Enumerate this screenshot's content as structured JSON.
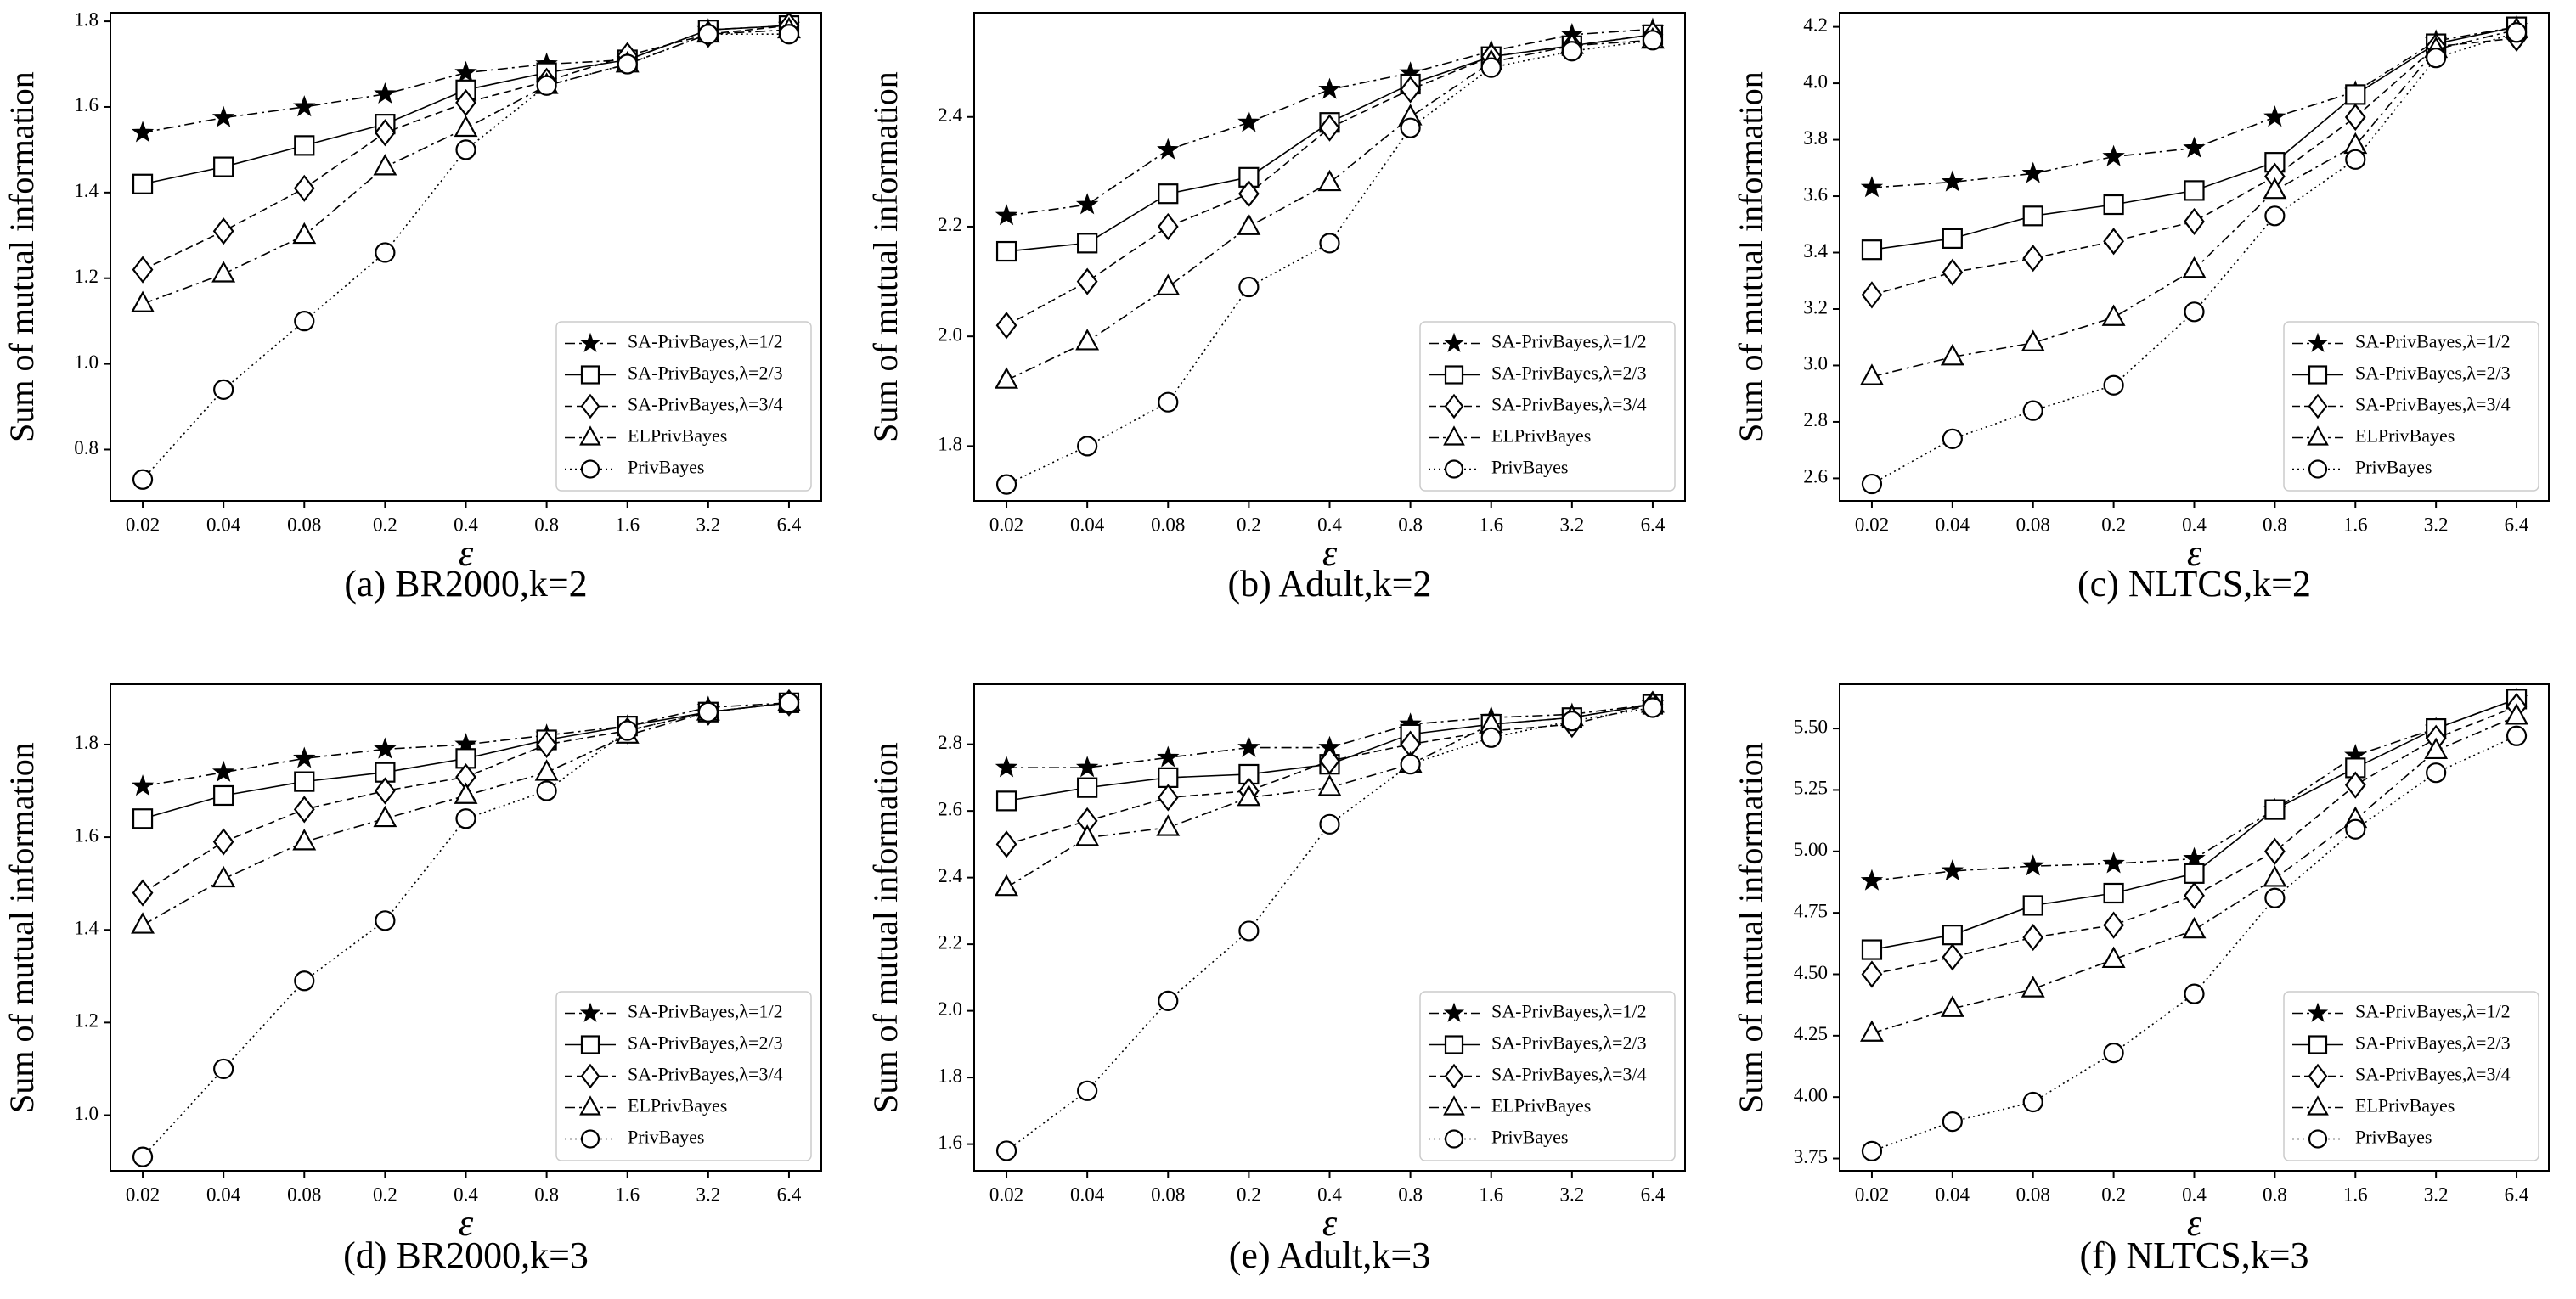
{
  "chart_data": [
    {
      "type": "line",
      "title": "(a) BR2000,k=2",
      "xlabel": "ε",
      "ylabel": "Sum of mutual information",
      "categories": [
        "0.02",
        "0.04",
        "0.08",
        "0.2",
        "0.4",
        "0.8",
        "1.6",
        "3.2",
        "6.4"
      ],
      "ylim": [
        0.68,
        1.82
      ],
      "yticks": [
        0.8,
        {
          "value": 1.0,
          "label": "1.0"
        },
        1.2,
        1.4,
        1.6,
        1.8
      ],
      "legend": "lower right",
      "series": [
        {
          "name": "SA-PrivBayes,λ=1/2",
          "color": "#000000",
          "marker": "star",
          "linestyle": "dashdot",
          "values": [
            1.54,
            1.575,
            1.6,
            1.63,
            1.68,
            1.7,
            1.71,
            1.78,
            1.79
          ]
        },
        {
          "name": "SA-PrivBayes,λ=2/3",
          "color": "#000000",
          "marker": "square",
          "linestyle": "solid",
          "values": [
            1.42,
            1.46,
            1.51,
            1.56,
            1.64,
            1.68,
            1.71,
            1.78,
            1.79
          ]
        },
        {
          "name": "SA-PrivBayes,λ=3/4",
          "color": "#000000",
          "marker": "diamond",
          "linestyle": "dashed",
          "values": [
            1.22,
            1.31,
            1.41,
            1.54,
            1.61,
            1.66,
            1.72,
            1.77,
            1.79
          ]
        },
        {
          "name": "ELPrivBayes",
          "color": "#000000",
          "marker": "triangle",
          "linestyle": "dashdot",
          "values": [
            1.14,
            1.21,
            1.3,
            1.46,
            1.55,
            1.65,
            1.7,
            1.77,
            1.78
          ]
        },
        {
          "name": "PrivBayes",
          "color": "#000000",
          "marker": "circle",
          "linestyle": "dotted",
          "values": [
            0.73,
            0.94,
            1.1,
            1.26,
            1.5,
            1.65,
            1.7,
            1.77,
            1.77
          ]
        }
      ]
    },
    {
      "type": "line",
      "title": "(b) Adult,k=2",
      "xlabel": "ε",
      "ylabel": "Sum of mutual information",
      "categories": [
        "0.02",
        "0.04",
        "0.08",
        "0.2",
        "0.4",
        "0.8",
        "1.6",
        "3.2",
        "6.4"
      ],
      "ylim": [
        1.7,
        2.59
      ],
      "yticks": [
        1.8,
        {
          "value": 2.0,
          "label": "2.0"
        },
        2.2,
        2.4
      ],
      "legend": "lower right",
      "series": [
        {
          "name": "SA-PrivBayes,λ=1/2",
          "color": "#000000",
          "marker": "star",
          "linestyle": "dashdot",
          "values": [
            2.22,
            2.24,
            2.34,
            2.39,
            2.45,
            2.48,
            2.52,
            2.55,
            2.56
          ]
        },
        {
          "name": "SA-PrivBayes,λ=2/3",
          "color": "#000000",
          "marker": "square",
          "linestyle": "solid",
          "values": [
            2.155,
            2.17,
            2.26,
            2.29,
            2.39,
            2.46,
            2.51,
            2.53,
            2.55
          ]
        },
        {
          "name": "SA-PrivBayes,λ=3/4",
          "color": "#000000",
          "marker": "diamond",
          "linestyle": "dashed",
          "values": [
            2.02,
            2.1,
            2.2,
            2.26,
            2.38,
            2.45,
            2.51,
            2.53,
            2.55
          ]
        },
        {
          "name": "ELPrivBayes",
          "color": "#000000",
          "marker": "triangle",
          "linestyle": "dashdot",
          "values": [
            1.92,
            1.99,
            2.09,
            2.2,
            2.28,
            2.4,
            2.5,
            2.53,
            2.54
          ]
        },
        {
          "name": "PrivBayes",
          "color": "#000000",
          "marker": "circle",
          "linestyle": "dotted",
          "values": [
            1.73,
            1.8,
            1.88,
            2.09,
            2.17,
            2.38,
            2.49,
            2.52,
            2.54
          ]
        }
      ]
    },
    {
      "type": "line",
      "title": "(c) NLTCS,k=2",
      "xlabel": "ε",
      "ylabel": "Sum of mutual information",
      "categories": [
        "0.02",
        "0.04",
        "0.08",
        "0.2",
        "0.4",
        "0.8",
        "1.6",
        "3.2",
        "6.4"
      ],
      "ylim": [
        2.52,
        4.25
      ],
      "yticks": [
        2.6,
        2.8,
        {
          "value": 3.0,
          "label": "3.0"
        },
        3.2,
        3.4,
        3.6,
        3.8,
        {
          "value": 4.0,
          "label": "4.0"
        },
        4.2
      ],
      "legend": "lower right",
      "series": [
        {
          "name": "SA-PrivBayes,λ=1/2",
          "color": "#000000",
          "marker": "star",
          "linestyle": "dashdot",
          "values": [
            3.63,
            3.65,
            3.68,
            3.74,
            3.77,
            3.88,
            3.97,
            4.15,
            4.2
          ]
        },
        {
          "name": "SA-PrivBayes,λ=2/3",
          "color": "#000000",
          "marker": "square",
          "linestyle": "solid",
          "values": [
            3.41,
            3.45,
            3.53,
            3.57,
            3.62,
            3.72,
            3.96,
            4.14,
            4.2
          ]
        },
        {
          "name": "SA-PrivBayes,λ=3/4",
          "color": "#000000",
          "marker": "diamond",
          "linestyle": "dashed",
          "values": [
            3.25,
            3.33,
            3.38,
            3.44,
            3.51,
            3.67,
            3.88,
            4.13,
            4.16
          ]
        },
        {
          "name": "ELPrivBayes",
          "color": "#000000",
          "marker": "triangle",
          "linestyle": "dashdot",
          "values": [
            2.96,
            3.03,
            3.08,
            3.17,
            3.34,
            3.62,
            3.78,
            4.12,
            4.19
          ]
        },
        {
          "name": "PrivBayes",
          "color": "#000000",
          "marker": "circle",
          "linestyle": "dotted",
          "values": [
            2.58,
            2.74,
            2.84,
            2.93,
            3.19,
            3.53,
            3.73,
            4.09,
            4.18
          ]
        }
      ]
    },
    {
      "type": "line",
      "title": "(d) BR2000,k=3",
      "xlabel": "ε",
      "ylabel": "Sum of mutual information",
      "categories": [
        "0.02",
        "0.04",
        "0.08",
        "0.2",
        "0.4",
        "0.8",
        "1.6",
        "3.2",
        "6.4"
      ],
      "ylim": [
        0.88,
        1.93
      ],
      "yticks": [
        {
          "value": 1.0,
          "label": "1.0"
        },
        1.2,
        1.4,
        1.6,
        1.8
      ],
      "legend": "lower right",
      "series": [
        {
          "name": "SA-PrivBayes,λ=1/2",
          "color": "#000000",
          "marker": "star",
          "linestyle": "dashdot",
          "values": [
            1.71,
            1.74,
            1.77,
            1.79,
            1.8,
            1.82,
            1.84,
            1.88,
            1.89
          ]
        },
        {
          "name": "SA-PrivBayes,λ=2/3",
          "color": "#000000",
          "marker": "square",
          "linestyle": "solid",
          "values": [
            1.64,
            1.69,
            1.72,
            1.74,
            1.77,
            1.81,
            1.84,
            1.87,
            1.89
          ]
        },
        {
          "name": "SA-PrivBayes,λ=3/4",
          "color": "#000000",
          "marker": "diamond",
          "linestyle": "dashed",
          "values": [
            1.48,
            1.59,
            1.66,
            1.7,
            1.73,
            1.8,
            1.83,
            1.87,
            1.89
          ]
        },
        {
          "name": "ELPrivBayes",
          "color": "#000000",
          "marker": "triangle",
          "linestyle": "dashdot",
          "values": [
            1.41,
            1.51,
            1.59,
            1.64,
            1.69,
            1.74,
            1.82,
            1.87,
            1.89
          ]
        },
        {
          "name": "PrivBayes",
          "color": "#000000",
          "marker": "circle",
          "linestyle": "dotted",
          "values": [
            0.91,
            1.1,
            1.29,
            1.42,
            1.64,
            1.7,
            1.83,
            1.87,
            1.89
          ]
        }
      ]
    },
    {
      "type": "line",
      "title": "(e) Adult,k=3",
      "xlabel": "ε",
      "ylabel": "Sum of mutual information",
      "categories": [
        "0.02",
        "0.04",
        "0.08",
        "0.2",
        "0.4",
        "0.8",
        "1.6",
        "3.2",
        "6.4"
      ],
      "ylim": [
        1.52,
        2.98
      ],
      "yticks": [
        1.6,
        1.8,
        {
          "value": 2.0,
          "label": "2.0"
        },
        2.2,
        2.4,
        2.6,
        2.8
      ],
      "legend": "lower right",
      "series": [
        {
          "name": "SA-PrivBayes,λ=1/2",
          "color": "#000000",
          "marker": "star",
          "linestyle": "dashdot",
          "values": [
            2.73,
            2.73,
            2.76,
            2.79,
            2.79,
            2.86,
            2.88,
            2.89,
            2.92
          ]
        },
        {
          "name": "SA-PrivBayes,λ=2/3",
          "color": "#000000",
          "marker": "square",
          "linestyle": "solid",
          "values": [
            2.63,
            2.67,
            2.7,
            2.71,
            2.74,
            2.83,
            2.86,
            2.88,
            2.92
          ]
        },
        {
          "name": "SA-PrivBayes,λ=3/4",
          "color": "#000000",
          "marker": "diamond",
          "linestyle": "dashed",
          "values": [
            2.5,
            2.57,
            2.64,
            2.66,
            2.75,
            2.8,
            2.84,
            2.86,
            2.92
          ]
        },
        {
          "name": "ELPrivBayes",
          "color": "#000000",
          "marker": "triangle",
          "linestyle": "dashdot",
          "values": [
            2.37,
            2.52,
            2.55,
            2.64,
            2.67,
            2.74,
            2.86,
            2.88,
            2.92
          ]
        },
        {
          "name": "PrivBayes",
          "color": "#000000",
          "marker": "circle",
          "linestyle": "dotted",
          "values": [
            1.58,
            1.76,
            2.03,
            2.24,
            2.56,
            2.74,
            2.82,
            2.87,
            2.91
          ]
        }
      ]
    },
    {
      "type": "line",
      "title": "(f) NLTCS,k=3",
      "xlabel": "ε",
      "ylabel": "Sum of mutual information",
      "categories": [
        "0.02",
        "0.04",
        "0.08",
        "0.2",
        "0.4",
        "0.8",
        "1.6",
        "3.2",
        "6.4"
      ],
      "ylim": [
        3.7,
        5.68
      ],
      "yticks": [
        3.75,
        {
          "value": 4.0,
          "label": "4.00"
        },
        4.25,
        {
          "value": 4.5,
          "label": "4.50"
        },
        4.75,
        {
          "value": 5.0,
          "label": "5.00"
        },
        5.25,
        {
          "value": 5.5,
          "label": "5.50"
        }
      ],
      "legend": "lower right",
      "series": [
        {
          "name": "SA-PrivBayes,λ=1/2",
          "color": "#000000",
          "marker": "star",
          "linestyle": "dashdot",
          "values": [
            4.88,
            4.92,
            4.94,
            4.95,
            4.97,
            5.17,
            5.39,
            5.5,
            5.62
          ]
        },
        {
          "name": "SA-PrivBayes,λ=2/3",
          "color": "#000000",
          "marker": "square",
          "linestyle": "solid",
          "values": [
            4.6,
            4.66,
            4.78,
            4.83,
            4.91,
            5.17,
            5.34,
            5.5,
            5.62
          ]
        },
        {
          "name": "SA-PrivBayes,λ=3/4",
          "color": "#000000",
          "marker": "diamond",
          "linestyle": "dashed",
          "values": [
            4.5,
            4.57,
            4.65,
            4.7,
            4.82,
            5.0,
            5.27,
            5.46,
            5.59
          ]
        },
        {
          "name": "ELPrivBayes",
          "color": "#000000",
          "marker": "triangle",
          "linestyle": "dashdot",
          "values": [
            4.26,
            4.36,
            4.44,
            4.56,
            4.68,
            4.89,
            5.13,
            5.41,
            5.55
          ]
        },
        {
          "name": "PrivBayes",
          "color": "#000000",
          "marker": "circle",
          "linestyle": "dotted",
          "values": [
            3.78,
            3.9,
            3.98,
            4.18,
            4.42,
            4.81,
            5.09,
            5.32,
            5.47
          ]
        }
      ]
    }
  ]
}
